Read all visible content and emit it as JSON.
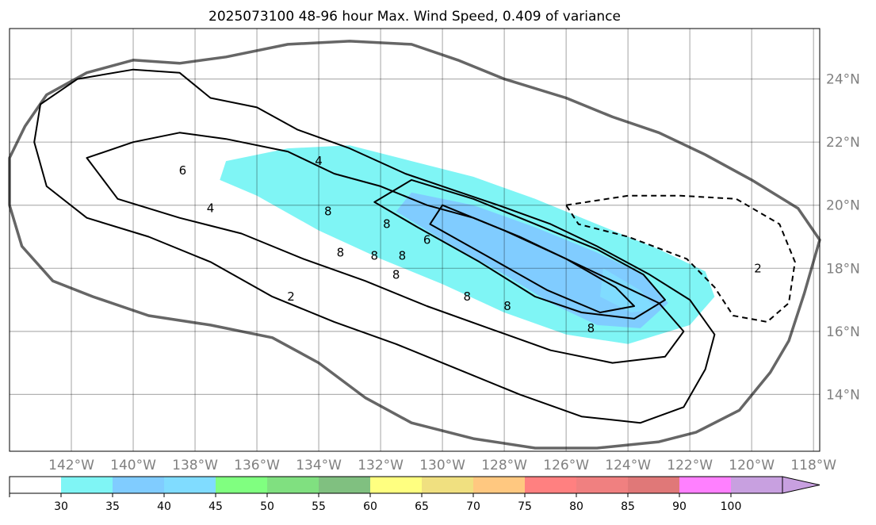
{
  "chart_data": {
    "type": "map",
    "title": "2025073100 48-96 hour Max. Wind Speed, 0.409 of variance",
    "lon_range": [
      -144,
      -117.8
    ],
    "lat_range": [
      12.2,
      25.6
    ],
    "grid": true,
    "lon_ticks": [
      {
        "value": -142,
        "label": "142°W"
      },
      {
        "value": -140,
        "label": "140°W"
      },
      {
        "value": -138,
        "label": "138°W"
      },
      {
        "value": -136,
        "label": "136°W"
      },
      {
        "value": -134,
        "label": "134°W"
      },
      {
        "value": -132,
        "label": "132°W"
      },
      {
        "value": -130,
        "label": "130°W"
      },
      {
        "value": -128,
        "label": "128°W"
      },
      {
        "value": -126,
        "label": "126°W"
      },
      {
        "value": -124,
        "label": "124°W"
      },
      {
        "value": -122,
        "label": "122°W"
      },
      {
        "value": -120,
        "label": "120°W"
      },
      {
        "value": -118,
        "label": "118°W"
      }
    ],
    "lat_ticks": [
      {
        "value": 14,
        "label": "14°N"
      },
      {
        "value": 16,
        "label": "16°N"
      },
      {
        "value": 18,
        "label": "18°N"
      },
      {
        "value": 20,
        "label": "20°N"
      },
      {
        "value": 22,
        "label": "22°N"
      },
      {
        "value": 24,
        "label": "24°N"
      }
    ],
    "wind_fill_regions": [
      {
        "level": "30-35",
        "color": "#7ff5f5",
        "polygon": [
          [
            -137,
            21.4
          ],
          [
            -135,
            21.8
          ],
          [
            -133,
            21.9
          ],
          [
            -131,
            21.4
          ],
          [
            -129,
            20.9
          ],
          [
            -127,
            20.2
          ],
          [
            -125,
            19.4
          ],
          [
            -123,
            18.6
          ],
          [
            -121.5,
            17.9
          ],
          [
            -121.2,
            17.1
          ],
          [
            -122,
            16.2
          ],
          [
            -124,
            15.6
          ],
          [
            -126,
            15.9
          ],
          [
            -128,
            16.6
          ],
          [
            -130,
            17.5
          ],
          [
            -132,
            18.3
          ],
          [
            -134,
            19.2
          ],
          [
            -136,
            20.3
          ],
          [
            -137.2,
            20.8
          ]
        ]
      },
      {
        "level": "35-40",
        "color": "#80ccff",
        "polygon": [
          [
            -131,
            20.4
          ],
          [
            -129,
            20.0
          ],
          [
            -127,
            19.3
          ],
          [
            -125,
            18.5
          ],
          [
            -123.5,
            17.8
          ],
          [
            -122.7,
            16.9
          ],
          [
            -123.6,
            16.1
          ],
          [
            -125,
            16.2
          ],
          [
            -126.5,
            16.9
          ],
          [
            -128,
            17.8
          ],
          [
            -130,
            18.9
          ],
          [
            -131.5,
            19.8
          ]
        ]
      },
      {
        "level": "40-45",
        "color": "#80dcff",
        "polygon": [
          [
            -124.8,
            18.0
          ],
          [
            -123.6,
            17.3
          ],
          [
            -123.1,
            16.7
          ],
          [
            -123.9,
            16.6
          ],
          [
            -124.9,
            17.1
          ]
        ]
      }
    ],
    "contours": [
      {
        "level": 0,
        "style": "outer-boundary",
        "color": "#666666",
        "points": [
          [
            -144,
            21.5
          ],
          [
            -143.5,
            22.5
          ],
          [
            -142.8,
            23.5
          ],
          [
            -141.5,
            24.2
          ],
          [
            -140,
            24.6
          ],
          [
            -138.5,
            24.5
          ],
          [
            -137,
            24.7
          ],
          [
            -135,
            25.1
          ],
          [
            -133,
            25.2
          ],
          [
            -131,
            25.1
          ],
          [
            -129.5,
            24.6
          ],
          [
            -128,
            24.0
          ],
          [
            -126,
            23.4
          ],
          [
            -124.5,
            22.8
          ],
          [
            -123,
            22.3
          ],
          [
            -121.5,
            21.6
          ],
          [
            -120,
            20.8
          ],
          [
            -118.5,
            19.9
          ],
          [
            -117.8,
            18.9
          ],
          [
            -118.3,
            17.2
          ],
          [
            -118.8,
            15.7
          ],
          [
            -119.4,
            14.7
          ],
          [
            -120.4,
            13.5
          ],
          [
            -121.8,
            12.8
          ],
          [
            -123,
            12.5
          ],
          [
            -125,
            12.3
          ],
          [
            -127,
            12.3
          ],
          [
            -129,
            12.6
          ],
          [
            -131,
            13.1
          ],
          [
            -132.5,
            13.9
          ],
          [
            -134,
            15.0
          ],
          [
            -135.5,
            15.8
          ],
          [
            -137.5,
            16.2
          ],
          [
            -139.5,
            16.5
          ],
          [
            -141.3,
            17.1
          ],
          [
            -142.6,
            17.6
          ],
          [
            -143.6,
            18.7
          ],
          [
            -144,
            20.0
          ]
        ]
      },
      {
        "level": 2,
        "style": "solid",
        "points": [
          [
            -143,
            23.2
          ],
          [
            -141.8,
            24.0
          ],
          [
            -140,
            24.3
          ],
          [
            -138.5,
            24.2
          ],
          [
            -137.5,
            23.4
          ],
          [
            -136,
            23.1
          ],
          [
            -134.7,
            22.4
          ],
          [
            -133,
            21.8
          ],
          [
            -131.2,
            21.0
          ],
          [
            -129.7,
            20.5
          ],
          [
            -128.2,
            20.0
          ],
          [
            -126.5,
            19.4
          ],
          [
            -125,
            18.7
          ],
          [
            -123.3,
            17.8
          ],
          [
            -122,
            17.0
          ],
          [
            -121.2,
            15.9
          ],
          [
            -121.5,
            14.8
          ],
          [
            -122.2,
            13.6
          ],
          [
            -123.6,
            13.1
          ],
          [
            -125.5,
            13.3
          ],
          [
            -127.5,
            14.0
          ],
          [
            -129.5,
            14.8
          ],
          [
            -131.5,
            15.6
          ],
          [
            -133.5,
            16.3
          ],
          [
            -135.5,
            17.1
          ],
          [
            -137.5,
            18.2
          ],
          [
            -139.5,
            19.0
          ],
          [
            -141.5,
            19.6
          ],
          [
            -142.8,
            20.6
          ],
          [
            -143.2,
            22.0
          ]
        ]
      },
      {
        "level": 4,
        "style": "solid",
        "points": [
          [
            -141.5,
            21.5
          ],
          [
            -140,
            22.0
          ],
          [
            -138.5,
            22.3
          ],
          [
            -137,
            22.1
          ],
          [
            -135,
            21.7
          ],
          [
            -133.5,
            21.0
          ],
          [
            -132,
            20.6
          ],
          [
            -130.5,
            20.0
          ],
          [
            -129,
            19.6
          ],
          [
            -127.5,
            19.0
          ],
          [
            -126,
            18.3
          ],
          [
            -124.5,
            17.6
          ],
          [
            -123,
            16.9
          ],
          [
            -122.2,
            16.0
          ],
          [
            -122.8,
            15.2
          ],
          [
            -124.5,
            15.0
          ],
          [
            -126.5,
            15.4
          ],
          [
            -128.5,
            16.1
          ],
          [
            -130.5,
            16.8
          ],
          [
            -132.5,
            17.6
          ],
          [
            -134.5,
            18.3
          ],
          [
            -136.5,
            19.1
          ],
          [
            -138.5,
            19.6
          ],
          [
            -140.5,
            20.2
          ]
        ]
      },
      {
        "level": 6,
        "style": "solid",
        "points": [
          [
            -131,
            20.8
          ],
          [
            -129,
            20.2
          ],
          [
            -127,
            19.4
          ],
          [
            -125,
            18.6
          ],
          [
            -123.5,
            17.8
          ],
          [
            -122.8,
            17.0
          ],
          [
            -123.8,
            16.4
          ],
          [
            -125.5,
            16.6
          ],
          [
            -127,
            17.1
          ],
          [
            -128.8,
            18.2
          ],
          [
            -130.8,
            19.3
          ],
          [
            -132.2,
            20.1
          ]
        ]
      },
      {
        "level": 8,
        "style": "solid",
        "points": [
          [
            -130,
            20.0
          ],
          [
            -128,
            19.2
          ],
          [
            -126,
            18.3
          ],
          [
            -124.4,
            17.4
          ],
          [
            -123.8,
            16.8
          ],
          [
            -124.9,
            16.6
          ],
          [
            -126.6,
            17.3
          ],
          [
            -128.4,
            18.3
          ],
          [
            -130.4,
            19.4
          ]
        ]
      },
      {
        "level": 2,
        "style": "dashed",
        "points": [
          [
            -126,
            20.0
          ],
          [
            -124,
            20.3
          ],
          [
            -122.3,
            20.3
          ],
          [
            -120.5,
            20.2
          ],
          [
            -119.1,
            19.4
          ],
          [
            -118.6,
            18.2
          ],
          [
            -118.8,
            16.9
          ],
          [
            -119.5,
            16.3
          ],
          [
            -120.6,
            16.5
          ],
          [
            -121.2,
            17.4
          ],
          [
            -122.1,
            18.3
          ],
          [
            -124.0,
            19.0
          ],
          [
            -125.6,
            19.4
          ]
        ]
      }
    ],
    "contour_labels": [
      {
        "lon": -134,
        "lat": 21.4,
        "text": "4"
      },
      {
        "lon": -138.4,
        "lat": 21.1,
        "text": "6"
      },
      {
        "lon": -137.5,
        "lat": 19.9,
        "text": "4"
      },
      {
        "lon": -133.7,
        "lat": 19.8,
        "text": "8"
      },
      {
        "lon": -131.8,
        "lat": 19.4,
        "text": "8"
      },
      {
        "lon": -130.5,
        "lat": 18.9,
        "text": "6"
      },
      {
        "lon": -133.3,
        "lat": 18.5,
        "text": "8"
      },
      {
        "lon": -132.2,
        "lat": 18.4,
        "text": "8"
      },
      {
        "lon": -131.3,
        "lat": 18.4,
        "text": "8"
      },
      {
        "lon": -131.5,
        "lat": 17.8,
        "text": "8"
      },
      {
        "lon": -129.2,
        "lat": 17.1,
        "text": "8"
      },
      {
        "lon": -134.9,
        "lat": 17.1,
        "text": "2"
      },
      {
        "lon": -127.9,
        "lat": 16.8,
        "text": "8"
      },
      {
        "lon": -125.2,
        "lat": 16.1,
        "text": "8"
      },
      {
        "lon": -119.8,
        "lat": 18.0,
        "text": "2"
      }
    ],
    "colorbar": {
      "ticks": [
        "30",
        "35",
        "40",
        "45",
        "50",
        "55",
        "60",
        "65",
        "70",
        "75",
        "80",
        "85",
        "90",
        "100"
      ],
      "colors": [
        "#ffffff",
        "#7ff5f5",
        "#80ccff",
        "#80dcff",
        "#80ff80",
        "#80e080",
        "#80c080",
        "#ffff80",
        "#f0e080",
        "#ffc880",
        "#ff8080",
        "#f08080",
        "#e07878",
        "#ff80ff",
        "#c8a0e0"
      ]
    }
  }
}
